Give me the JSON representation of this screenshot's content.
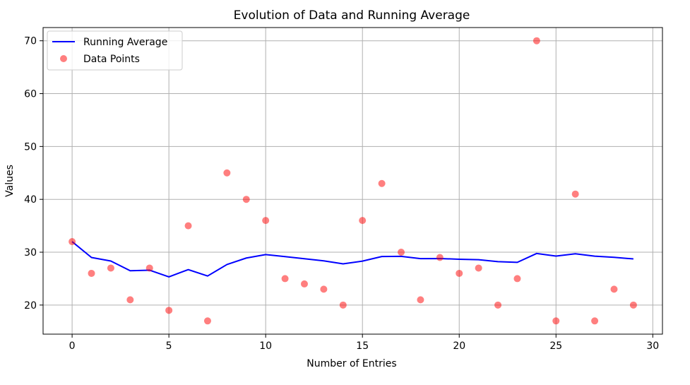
{
  "chart_data": {
    "type": "line+scatter",
    "title": "Evolution of Data and Running Average",
    "xlabel": "Number of Entries",
    "ylabel": "Values",
    "xlim": [
      -1.5,
      30.5
    ],
    "ylim": [
      14.5,
      72.5
    ],
    "xticks": [
      0,
      5,
      10,
      15,
      20,
      25,
      30
    ],
    "yticks": [
      20,
      30,
      40,
      50,
      60,
      70
    ],
    "grid": true,
    "legend_position": "upper-left",
    "series": [
      {
        "name": "Running Average",
        "type": "line",
        "color": "#0000ff",
        "x": [
          0,
          1,
          2,
          3,
          4,
          5,
          6,
          7,
          8,
          9,
          10,
          11,
          12,
          13,
          14,
          15,
          16,
          17,
          18,
          19,
          20,
          21,
          22,
          23,
          24,
          25,
          26,
          27,
          28,
          29
        ],
        "y": [
          32.0,
          29.0,
          28.33,
          26.5,
          26.6,
          25.33,
          26.71,
          25.5,
          27.67,
          28.9,
          29.55,
          29.17,
          28.77,
          28.36,
          27.8,
          28.31,
          29.18,
          29.22,
          28.79,
          28.8,
          28.67,
          28.59,
          28.22,
          28.08,
          29.76,
          29.27,
          29.7,
          29.25,
          29.03,
          28.73
        ]
      },
      {
        "name": "Data Points",
        "type": "scatter",
        "color": "#ff0000",
        "opacity": 0.5,
        "x": [
          0,
          1,
          2,
          3,
          4,
          5,
          6,
          7,
          8,
          9,
          10,
          11,
          12,
          13,
          14,
          15,
          16,
          17,
          18,
          19,
          20,
          21,
          22,
          23,
          24,
          25,
          26,
          27,
          28,
          29
        ],
        "y": [
          32,
          26,
          27,
          21,
          27,
          19,
          35,
          17,
          45,
          40,
          36,
          25,
          24,
          23,
          20,
          36,
          43,
          30,
          21,
          29,
          26,
          27,
          20,
          25,
          70,
          17,
          41,
          17,
          23,
          20
        ]
      }
    ]
  }
}
